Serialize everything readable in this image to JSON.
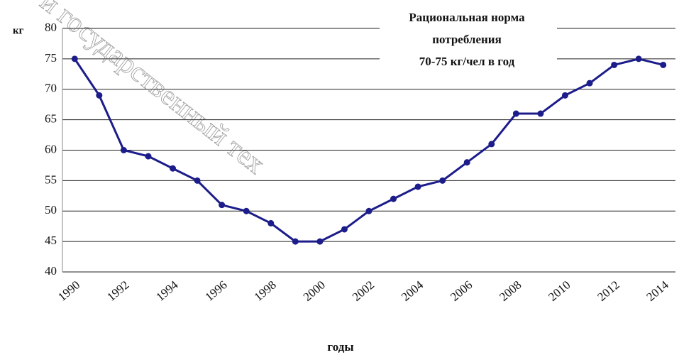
{
  "chart_data": {
    "type": "line",
    "y_label": "кг",
    "x_label": "годы",
    "annotation": [
      "Рациональная норма",
      "потребления",
      "70-75 кг/чел в год"
    ],
    "watermark": "й государственный тех",
    "categories": [
      "1990",
      null,
      "1992",
      null,
      "1994",
      null,
      "1996",
      null,
      "1998",
      null,
      "2000",
      null,
      "2002",
      null,
      "2004",
      null,
      "2006",
      null,
      "2008",
      null,
      "2010",
      null,
      "2012",
      null,
      "2014"
    ],
    "series": [
      {
        "color": "#1c1c8a",
        "values": [
          75,
          69,
          60,
          59,
          57,
          55,
          51,
          50,
          48,
          45,
          45,
          47,
          50,
          52,
          54,
          55,
          58,
          61,
          66,
          66,
          69,
          71,
          74,
          75,
          74
        ]
      }
    ],
    "ylim": [
      40,
      80
    ],
    "yticks": [
      40,
      45,
      50,
      55,
      60,
      65,
      70,
      75,
      80
    ],
    "grid": true
  }
}
